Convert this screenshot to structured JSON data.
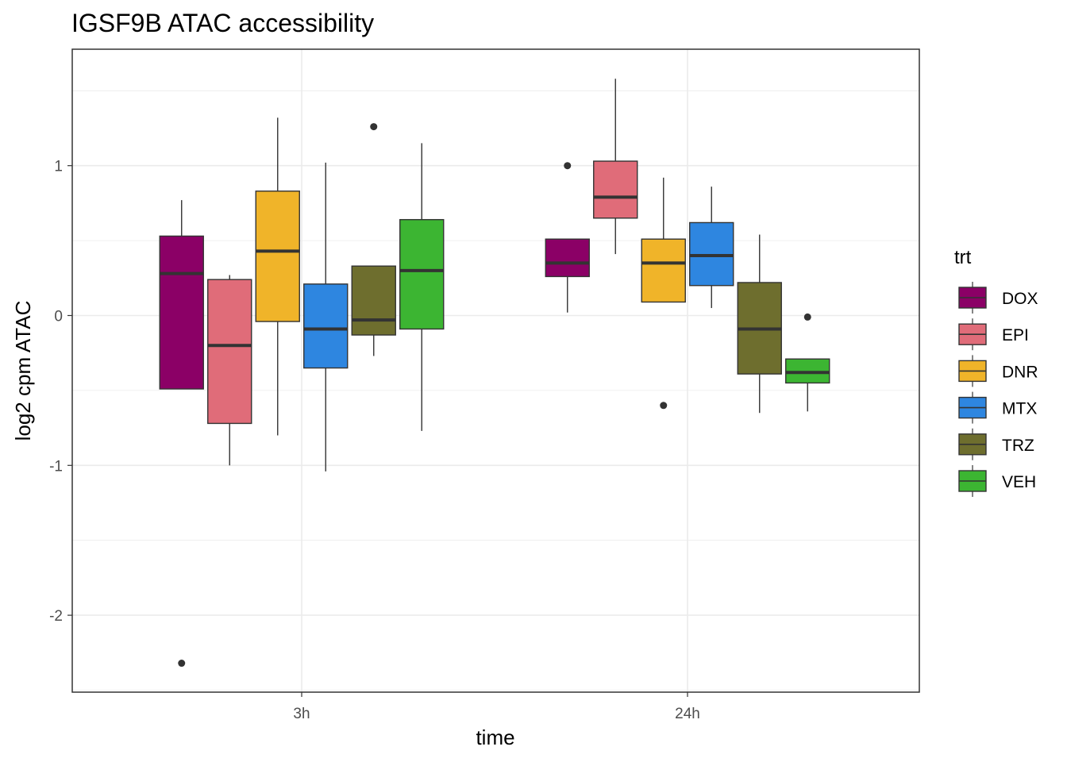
{
  "chart_data": {
    "type": "boxplot",
    "title": "IGSF9B ATAC accessibility",
    "xlabel": "time",
    "ylabel": "log2 cpm ATAC",
    "categories": [
      "3h",
      "24h"
    ],
    "ylim": [
      -2.5,
      1.75
    ],
    "y_ticks": [
      {
        "value": 1,
        "label": "1"
      },
      {
        "value": 0,
        "label": "0"
      },
      {
        "value": -1,
        "label": "-1"
      },
      {
        "value": -2,
        "label": "-2"
      }
    ],
    "legend": {
      "title": "trt",
      "position": "right",
      "items": [
        {
          "label": "DOX",
          "color": "#8B0066"
        },
        {
          "label": "EPI",
          "color": "#E06C79"
        },
        {
          "label": "DNR",
          "color": "#F0B429"
        },
        {
          "label": "MTX",
          "color": "#2E86E0"
        },
        {
          "label": "TRZ",
          "color": "#6E6E2E"
        },
        {
          "label": "VEH",
          "color": "#3CB532"
        }
      ]
    },
    "series": [
      {
        "name": "DOX",
        "color": "#8B0066",
        "boxes": [
          {
            "category": "3h",
            "lower_whisker": -0.49,
            "q1": -0.49,
            "median": 0.28,
            "q3": 0.53,
            "upper_whisker": 0.77,
            "outliers": [
              -2.32
            ]
          },
          {
            "category": "24h",
            "lower_whisker": 0.02,
            "q1": 0.26,
            "median": 0.35,
            "q3": 0.51,
            "upper_whisker": 0.51,
            "outliers": [
              1.0
            ]
          }
        ]
      },
      {
        "name": "EPI",
        "color": "#E06C79",
        "boxes": [
          {
            "category": "3h",
            "lower_whisker": -1.0,
            "q1": -0.72,
            "median": -0.2,
            "q3": 0.24,
            "upper_whisker": 0.27,
            "outliers": []
          },
          {
            "category": "24h",
            "lower_whisker": 0.41,
            "q1": 0.65,
            "median": 0.79,
            "q3": 1.03,
            "upper_whisker": 1.58,
            "outliers": []
          }
        ]
      },
      {
        "name": "DNR",
        "color": "#F0B429",
        "boxes": [
          {
            "category": "3h",
            "lower_whisker": -0.8,
            "q1": -0.04,
            "median": 0.43,
            "q3": 0.83,
            "upper_whisker": 1.32,
            "outliers": []
          },
          {
            "category": "24h",
            "lower_whisker": 0.09,
            "q1": 0.09,
            "median": 0.35,
            "q3": 0.51,
            "upper_whisker": 0.92,
            "outliers": [
              -0.6
            ]
          }
        ]
      },
      {
        "name": "MTX",
        "color": "#2E86E0",
        "boxes": [
          {
            "category": "3h",
            "lower_whisker": -1.04,
            "q1": -0.35,
            "median": -0.09,
            "q3": 0.21,
            "upper_whisker": 1.02,
            "outliers": []
          },
          {
            "category": "24h",
            "lower_whisker": 0.05,
            "q1": 0.2,
            "median": 0.4,
            "q3": 0.62,
            "upper_whisker": 0.86,
            "outliers": []
          }
        ]
      },
      {
        "name": "TRZ",
        "color": "#6E6E2E",
        "boxes": [
          {
            "category": "3h",
            "lower_whisker": -0.27,
            "q1": -0.13,
            "median": -0.03,
            "q3": 0.33,
            "upper_whisker": 0.33,
            "outliers": [
              1.26
            ]
          },
          {
            "category": "24h",
            "lower_whisker": -0.65,
            "q1": -0.39,
            "median": -0.09,
            "q3": 0.22,
            "upper_whisker": 0.54,
            "outliers": []
          }
        ]
      },
      {
        "name": "VEH",
        "color": "#3CB532",
        "boxes": [
          {
            "category": "3h",
            "lower_whisker": -0.77,
            "q1": -0.09,
            "median": 0.3,
            "q3": 0.64,
            "upper_whisker": 1.15,
            "outliers": []
          },
          {
            "category": "24h",
            "lower_whisker": -0.64,
            "q1": -0.45,
            "median": -0.38,
            "q3": -0.29,
            "upper_whisker": -0.29,
            "outliers": [
              -0.01
            ]
          }
        ]
      }
    ]
  }
}
